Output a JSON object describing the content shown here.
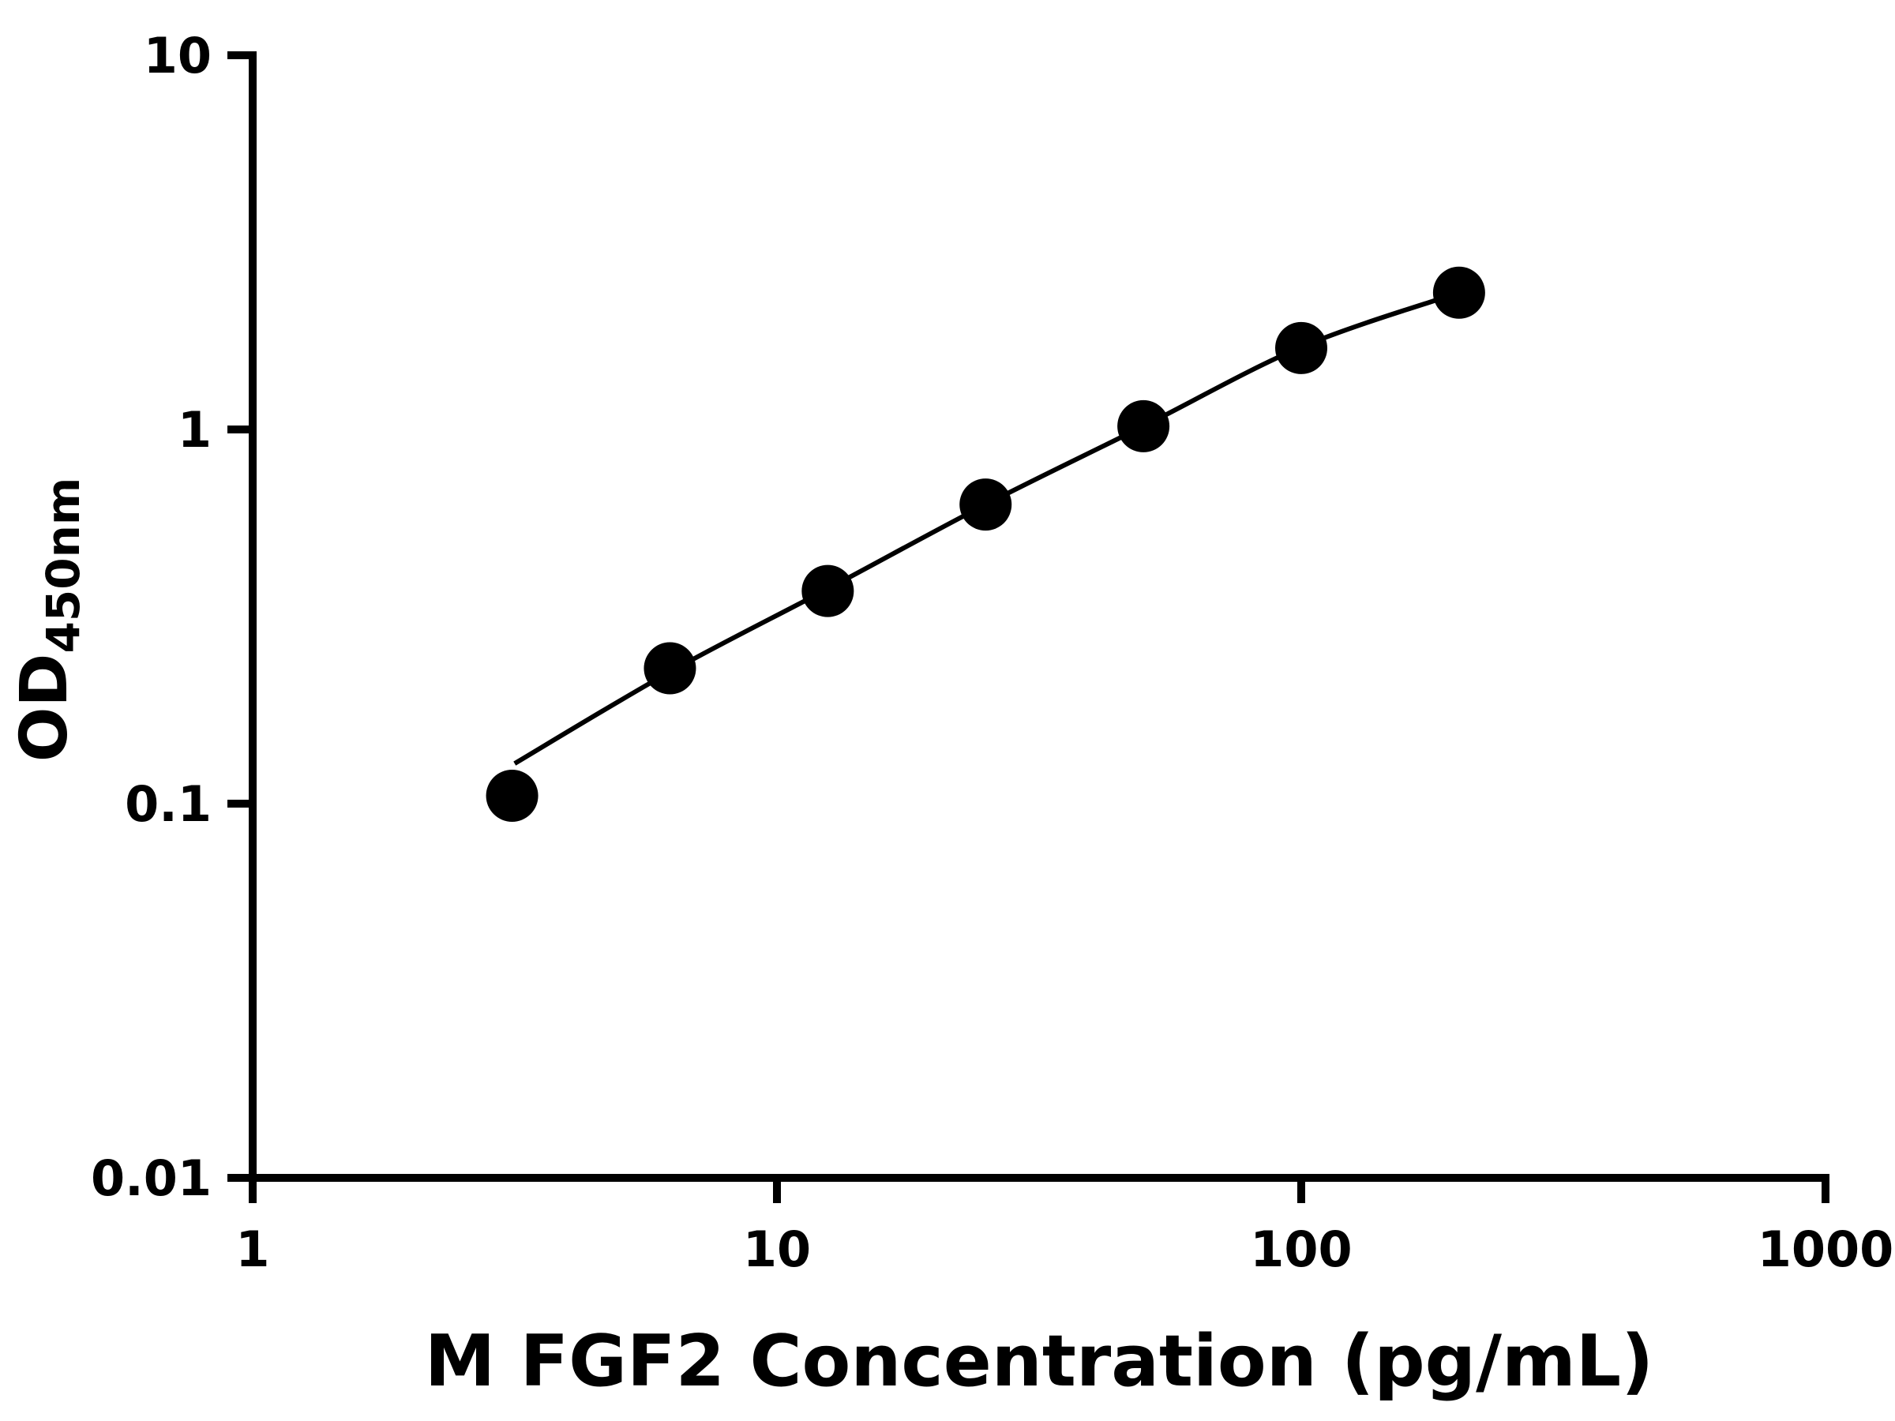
{
  "chart_data": {
    "type": "scatter",
    "title": "",
    "xlabel": "M FGF2 Concentration (pg/mL)",
    "ylabel": {
      "main": "OD",
      "sub": "450nm"
    },
    "x_scale": "log",
    "y_scale": "log",
    "xlim": [
      1,
      1000
    ],
    "ylim": [
      0.01,
      10
    ],
    "x_ticks": [
      {
        "value": 1,
        "label": "1"
      },
      {
        "value": 10,
        "label": "10"
      },
      {
        "value": 100,
        "label": "100"
      },
      {
        "value": 1000,
        "label": "1000"
      }
    ],
    "y_ticks": [
      {
        "value": 0.01,
        "label": "0.01"
      },
      {
        "value": 0.1,
        "label": "0.1"
      },
      {
        "value": 1,
        "label": "1"
      },
      {
        "value": 10,
        "label": "10"
      }
    ],
    "x": [
      3.125,
      6.25,
      12.5,
      25,
      50,
      100,
      200
    ],
    "y": [
      0.105,
      0.23,
      0.37,
      0.63,
      1.02,
      1.65,
      2.32
    ],
    "curve_points": [
      [
        3.16,
        0.128
      ],
      [
        6.25,
        0.225
      ],
      [
        12.5,
        0.375
      ],
      [
        25,
        0.63
      ],
      [
        50,
        1.02
      ],
      [
        100,
        1.66
      ],
      [
        200,
        2.32
      ]
    ],
    "grid": false,
    "legend": false,
    "marker_radius": 33,
    "colors": {
      "points": "#000000",
      "curve": "#000000",
      "axes": "#000000",
      "background": "#ffffff"
    }
  }
}
